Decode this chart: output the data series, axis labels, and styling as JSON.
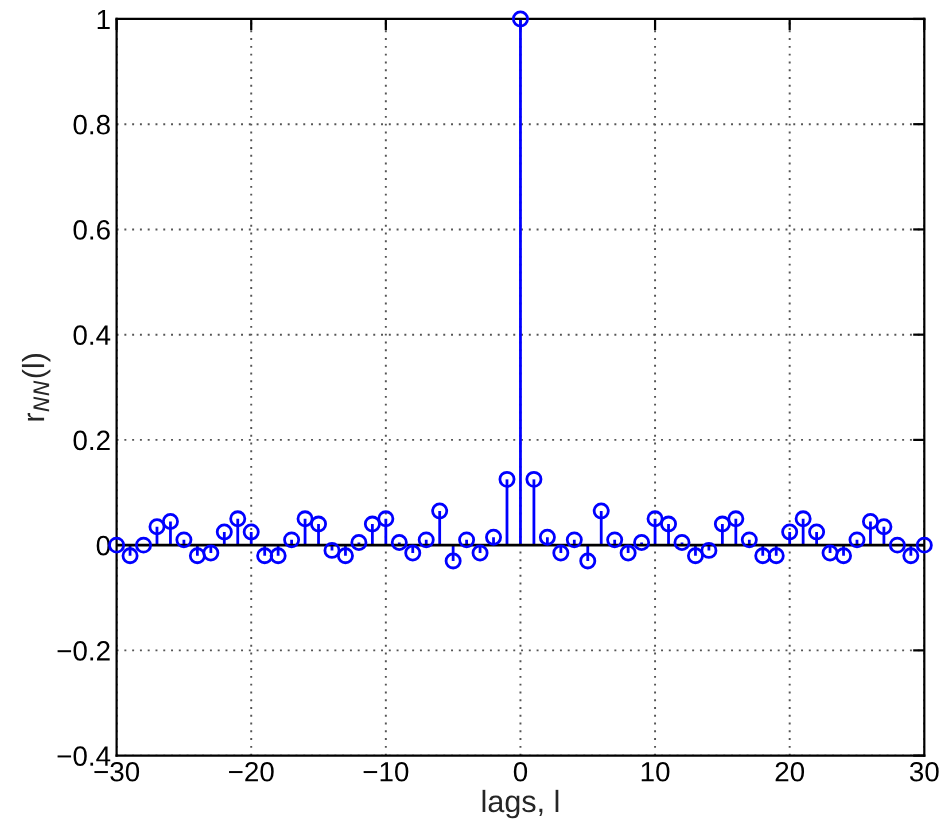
{
  "chart_data": {
    "type": "lollipop",
    "xlabel": "lags, l",
    "ylabel": "r$_{NN}$(l)",
    "x": [
      -30,
      -29,
      -28,
      -27,
      -26,
      -25,
      -24,
      -23,
      -22,
      -21,
      -20,
      -19,
      -18,
      -17,
      -16,
      -15,
      -14,
      -13,
      -12,
      -11,
      -10,
      -9,
      -8,
      -7,
      -6,
      -5,
      -4,
      -3,
      -2,
      -1,
      0,
      1,
      2,
      3,
      4,
      5,
      6,
      7,
      8,
      9,
      10,
      11,
      12,
      13,
      14,
      15,
      16,
      17,
      18,
      19,
      20,
      21,
      22,
      23,
      24,
      25,
      26,
      27,
      28,
      29,
      30
    ],
    "values": [
      0,
      -0.02,
      0,
      0.035,
      0.045,
      0.01,
      -0.02,
      -0.015,
      0.025,
      0.05,
      0.025,
      -0.02,
      -0.02,
      0.01,
      0.05,
      0.04,
      -0.01,
      -0.02,
      0.005,
      0.04,
      0.05,
      0.005,
      -0.015,
      0.01,
      0.065,
      -0.03,
      0.01,
      -0.015,
      0.015,
      0.125,
      1,
      0.125,
      0.015,
      -0.015,
      0.01,
      -0.03,
      0.065,
      0.01,
      -0.015,
      0.005,
      0.05,
      0.04,
      0.005,
      -0.02,
      -0.01,
      0.04,
      0.05,
      0.01,
      -0.02,
      -0.02,
      0.025,
      0.05,
      0.025,
      -0.015,
      -0.02,
      0.01,
      0.045,
      0.035,
      0,
      -0.02,
      0
    ],
    "color": "#0000ff",
    "marker": "circle",
    "xlim": [
      -30,
      30
    ],
    "ylim": [
      -0.4,
      1
    ],
    "xticks": [
      -30,
      -20,
      -10,
      0,
      10,
      20,
      30
    ],
    "yticks": [
      -0.4,
      -0.2,
      0,
      0.2,
      0.4,
      0.6,
      0.8,
      1
    ],
    "grid": true
  }
}
